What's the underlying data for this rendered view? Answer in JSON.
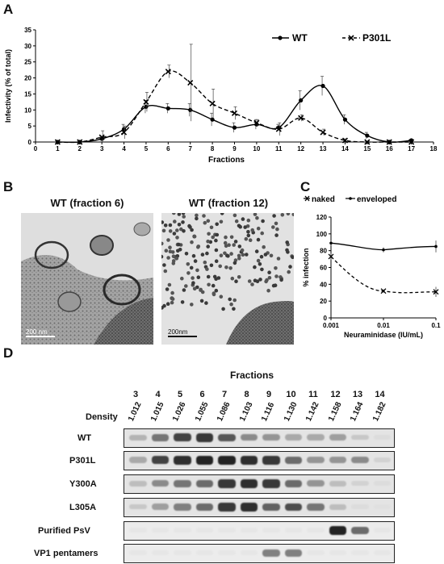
{
  "panels": {
    "A": {
      "letter": "A"
    },
    "B": {
      "letter": "B",
      "left_title": "WT (fraction 6)",
      "right_title": "WT (fraction 12)",
      "scale_left": "200 nm",
      "scale_right": "200nm"
    },
    "C": {
      "letter": "C"
    },
    "D": {
      "letter": "D",
      "fractions_title": "Fractions",
      "fractions": [
        "3",
        "4",
        "5",
        "6",
        "7",
        "8",
        "9",
        "10",
        "11",
        "12",
        "13",
        "14"
      ],
      "density_label": "Density",
      "densities": [
        "1.012",
        "1.015",
        "1.026",
        "1.055",
        "1.086",
        "1.103",
        "1.116",
        "1.130",
        "1.142",
        "1.158",
        "1.164",
        "1.182"
      ],
      "rows": [
        {
          "label": "WT",
          "intensity": [
            0.25,
            0.55,
            0.8,
            0.85,
            0.7,
            0.45,
            0.4,
            0.3,
            0.3,
            0.35,
            0.15,
            0.05
          ]
        },
        {
          "label": "P301L",
          "intensity": [
            0.3,
            0.8,
            0.9,
            0.95,
            0.95,
            0.9,
            0.85,
            0.6,
            0.4,
            0.4,
            0.45,
            0.1
          ]
        },
        {
          "label": "Y300A",
          "intensity": [
            0.2,
            0.45,
            0.55,
            0.6,
            0.85,
            0.9,
            0.85,
            0.6,
            0.4,
            0.2,
            0.1,
            0.05
          ]
        },
        {
          "label": "L305A",
          "intensity": [
            0.15,
            0.35,
            0.5,
            0.6,
            0.85,
            0.9,
            0.65,
            0.75,
            0.55,
            0.2,
            0.05,
            0.03
          ]
        },
        {
          "label": "Purified PsV",
          "intensity": [
            0,
            0,
            0,
            0,
            0,
            0,
            0,
            0,
            0,
            0.95,
            0.6,
            0
          ]
        },
        {
          "label": "VP1 pentamers",
          "intensity": [
            0,
            0,
            0,
            0,
            0,
            0,
            0.5,
            0.5,
            0,
            0,
            0,
            0
          ]
        }
      ]
    }
  },
  "chart_data": [
    {
      "type": "line",
      "panel": "A",
      "ylabel": "Infectivity (% of total)",
      "xlabel": "Fractions",
      "xlim": [
        0,
        18
      ],
      "ylim": [
        0,
        35
      ],
      "xticks": [
        0,
        1,
        2,
        3,
        4,
        5,
        6,
        7,
        8,
        9,
        10,
        11,
        12,
        13,
        14,
        15,
        16,
        17,
        18
      ],
      "yticks": [
        0,
        5,
        10,
        15,
        20,
        25,
        30,
        35
      ],
      "legend_position": "top-right",
      "series": [
        {
          "name": "WT",
          "style": "solid",
          "marker": "circle",
          "x": [
            1,
            2,
            3,
            4,
            5,
            6,
            7,
            8,
            9,
            10,
            11,
            12,
            13,
            14,
            15,
            16,
            17
          ],
          "y": [
            0,
            0,
            1,
            4,
            11,
            10.5,
            10,
            7,
            4.5,
            5.5,
            4.5,
            13,
            17.5,
            7,
            2,
            0,
            0.5
          ],
          "err": [
            0,
            0,
            0.5,
            1.5,
            2,
            1.5,
            2,
            2,
            1.5,
            1.5,
            1,
            3,
            3,
            1.5,
            1,
            0,
            0
          ]
        },
        {
          "name": "P301L",
          "style": "dashed",
          "marker": "x",
          "x": [
            1,
            2,
            3,
            4,
            5,
            6,
            7,
            8,
            9,
            10,
            11,
            12,
            13,
            14,
            15,
            16,
            17
          ],
          "y": [
            0,
            0,
            1.5,
            3,
            12.5,
            22,
            18.5,
            12,
            9,
            6,
            4,
            7.5,
            3,
            0.5,
            0,
            0,
            0
          ],
          "err": [
            0,
            0,
            2,
            2,
            3,
            2,
            12,
            4.5,
            2,
            1,
            2,
            1,
            1,
            0.5,
            0,
            0,
            0
          ]
        }
      ]
    },
    {
      "type": "line",
      "panel": "C",
      "ylabel": "% infection",
      "xlabel": "Neuraminidase (IU/mL)",
      "xscale": "log",
      "xlim": [
        0.001,
        0.1
      ],
      "ylim": [
        0,
        120
      ],
      "xticks": [
        "0.001",
        "0.01",
        "0.1"
      ],
      "yticks": [
        0,
        20,
        40,
        60,
        80,
        100,
        120
      ],
      "legend_position": "top",
      "series": [
        {
          "name": "naked",
          "style": "dashed",
          "marker": "x",
          "x": [
            0.001,
            0.01,
            0.1
          ],
          "y": [
            73,
            32,
            31
          ],
          "err": [
            4,
            2,
            6
          ]
        },
        {
          "name": "enveloped",
          "style": "solid",
          "marker": "dot",
          "x": [
            0.001,
            0.01,
            0.1
          ],
          "y": [
            89,
            81,
            85
          ],
          "err": [
            3,
            3,
            7
          ]
        }
      ]
    }
  ]
}
